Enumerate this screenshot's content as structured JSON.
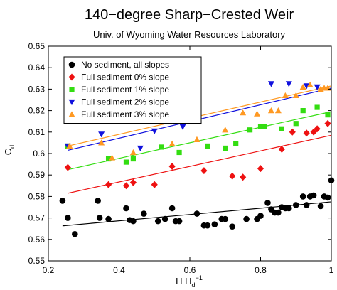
{
  "chart_data": {
    "type": "scatter",
    "title": "140−degree Sharp−Crested Weir",
    "subtitle": "Univ. of Wyoming Water Resources Laboratory",
    "xlabel": "H H",
    "xlabel_sub": "d",
    "xlabel_sup": "−1",
    "ylabel": "C",
    "ylabel_sub": "d",
    "xlim": [
      0.2,
      1.0
    ],
    "ylim": [
      0.55,
      0.65
    ],
    "xticks": [
      "0.2",
      "0.4",
      "0.6",
      "0.8",
      "1"
    ],
    "yticks": [
      "0.55",
      "0.56",
      "0.57",
      "0.58",
      "0.59",
      "0.6",
      "0.61",
      "0.62",
      "0.63",
      "0.64",
      "0.65"
    ],
    "grid": false,
    "legend_position": "top-left",
    "series": [
      {
        "name": "No sediment, all slopes",
        "color": "#000000",
        "marker": "circle",
        "points": [
          [
            0.24,
            0.578
          ],
          [
            0.255,
            0.57
          ],
          [
            0.275,
            0.5625
          ],
          [
            0.34,
            0.578
          ],
          [
            0.345,
            0.57
          ],
          [
            0.37,
            0.5695
          ],
          [
            0.42,
            0.5745
          ],
          [
            0.43,
            0.569
          ],
          [
            0.44,
            0.5685
          ],
          [
            0.47,
            0.572
          ],
          [
            0.51,
            0.5685
          ],
          [
            0.53,
            0.5695
          ],
          [
            0.55,
            0.5745
          ],
          [
            0.56,
            0.5685
          ],
          [
            0.57,
            0.5685
          ],
          [
            0.62,
            0.572
          ],
          [
            0.64,
            0.5665
          ],
          [
            0.65,
            0.5665
          ],
          [
            0.67,
            0.567
          ],
          [
            0.69,
            0.5695
          ],
          [
            0.7,
            0.5695
          ],
          [
            0.72,
            0.566
          ],
          [
            0.76,
            0.5695
          ],
          [
            0.79,
            0.5695
          ],
          [
            0.8,
            0.571
          ],
          [
            0.82,
            0.577
          ],
          [
            0.83,
            0.574
          ],
          [
            0.84,
            0.5725
          ],
          [
            0.85,
            0.5725
          ],
          [
            0.86,
            0.575
          ],
          [
            0.87,
            0.5745
          ],
          [
            0.88,
            0.5745
          ],
          [
            0.9,
            0.576
          ],
          [
            0.92,
            0.58
          ],
          [
            0.93,
            0.576
          ],
          [
            0.94,
            0.58
          ],
          [
            0.95,
            0.5805
          ],
          [
            0.97,
            0.5755
          ],
          [
            0.98,
            0.58
          ],
          [
            0.99,
            0.5795
          ],
          [
            1.0,
            0.5875
          ]
        ],
        "fit": [
          [
            0.24,
            0.5663
          ],
          [
            1.0,
            0.5775
          ]
        ]
      },
      {
        "name": "Full sediment 0% slope",
        "color": "#ee1111",
        "marker": "diamond",
        "points": [
          [
            0.255,
            0.5935
          ],
          [
            0.37,
            0.5855
          ],
          [
            0.42,
            0.585
          ],
          [
            0.44,
            0.5865
          ],
          [
            0.5,
            0.5855
          ],
          [
            0.55,
            0.594
          ],
          [
            0.64,
            0.592
          ],
          [
            0.72,
            0.5895
          ],
          [
            0.75,
            0.589
          ],
          [
            0.8,
            0.593
          ],
          [
            0.86,
            0.602
          ],
          [
            0.89,
            0.61
          ],
          [
            0.93,
            0.6095
          ],
          [
            0.95,
            0.61
          ],
          [
            0.96,
            0.6115
          ],
          [
            0.99,
            0.614
          ]
        ],
        "fit": [
          [
            0.255,
            0.5815
          ],
          [
            1.0,
            0.6085
          ]
        ]
      },
      {
        "name": "Full sediment 1% slope",
        "color": "#33dd11",
        "marker": "square",
        "points": [
          [
            0.255,
            0.6035
          ],
          [
            0.37,
            0.5975
          ],
          [
            0.42,
            0.596
          ],
          [
            0.44,
            0.5975
          ],
          [
            0.52,
            0.603
          ],
          [
            0.57,
            0.6005
          ],
          [
            0.65,
            0.6035
          ],
          [
            0.7,
            0.6025
          ],
          [
            0.73,
            0.6045
          ],
          [
            0.77,
            0.611
          ],
          [
            0.8,
            0.6125
          ],
          [
            0.81,
            0.6125
          ],
          [
            0.86,
            0.6115
          ],
          [
            0.9,
            0.614
          ],
          [
            0.92,
            0.62
          ],
          [
            0.96,
            0.6215
          ],
          [
            0.99,
            0.618
          ]
        ],
        "fit": [
          [
            0.255,
            0.5925
          ],
          [
            1.0,
            0.6195
          ]
        ]
      },
      {
        "name": "Full sediment 2% slope",
        "color": "#1111dd",
        "marker": "triangle-down",
        "points": [
          [
            0.255,
            0.6035
          ],
          [
            0.35,
            0.609
          ],
          [
            0.46,
            0.6025
          ],
          [
            0.5,
            0.6105
          ],
          [
            0.58,
            0.6125
          ],
          [
            0.83,
            0.6325
          ],
          [
            0.88,
            0.6325
          ],
          [
            0.93,
            0.6315
          ],
          [
            0.96,
            0.631
          ]
        ],
        "fit": [
          [
            0.255,
            0.6015
          ],
          [
            1.0,
            0.6305
          ]
        ]
      },
      {
        "name": "Full sediment 3% slope",
        "color": "#ff9922",
        "marker": "triangle-up",
        "points": [
          [
            0.26,
            0.6035
          ],
          [
            0.35,
            0.605
          ],
          [
            0.38,
            0.598
          ],
          [
            0.44,
            0.6005
          ],
          [
            0.55,
            0.6045
          ],
          [
            0.62,
            0.6065
          ],
          [
            0.7,
            0.611
          ],
          [
            0.75,
            0.619
          ],
          [
            0.79,
            0.6185
          ],
          [
            0.83,
            0.62
          ],
          [
            0.85,
            0.62
          ],
          [
            0.87,
            0.627
          ],
          [
            0.9,
            0.627
          ],
          [
            0.92,
            0.631
          ],
          [
            0.94,
            0.632
          ],
          [
            0.97,
            0.63
          ],
          [
            0.98,
            0.6305
          ],
          [
            0.99,
            0.6305
          ]
        ],
        "fit": [
          [
            0.255,
            0.6035
          ],
          [
            1.0,
            0.6315
          ]
        ]
      }
    ]
  }
}
